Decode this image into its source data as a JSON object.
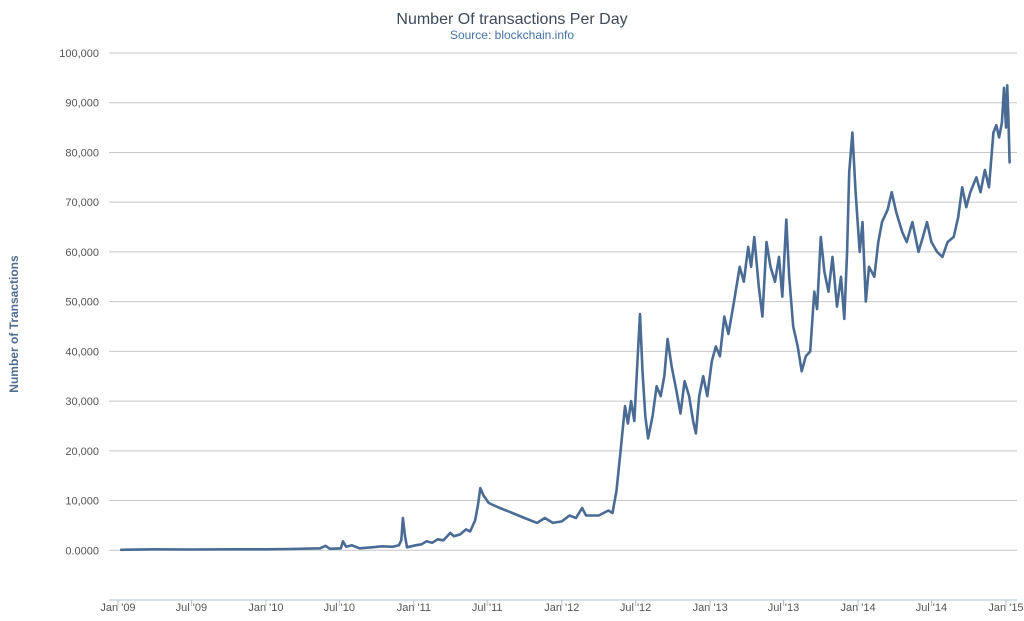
{
  "chart_data": {
    "type": "line",
    "title": "Number Of transactions Per Day",
    "subtitle": "Source: blockchain.info",
    "xlabel": "",
    "ylabel": "Number of Transactions",
    "ylim": [
      -10000,
      100000
    ],
    "xlim": [
      "2009-01-01",
      "2015-01-10"
    ],
    "y_ticks": [
      0,
      10000,
      20000,
      30000,
      40000,
      50000,
      60000,
      70000,
      80000,
      90000,
      100000
    ],
    "y_tick_labels": [
      "0.0000",
      "10,000",
      "20,000",
      "30,000",
      "40,000",
      "50,000",
      "60,000",
      "70,000",
      "80,000",
      "90,000",
      "100,000"
    ],
    "x_ticks": [
      "2009-01-01",
      "2009-07-01",
      "2010-01-01",
      "2010-07-01",
      "2011-01-01",
      "2011-07-01",
      "2012-01-01",
      "2012-07-01",
      "2013-01-01",
      "2013-07-01",
      "2014-01-01",
      "2014-07-01",
      "2015-01-01"
    ],
    "x_tick_labels": [
      "Jan '09",
      "Jul '09",
      "Jan '10",
      "Jul '10",
      "Jan '11",
      "Jul '11",
      "Jan '12",
      "Jul '12",
      "Jan '13",
      "Jul '13",
      "Jan '14",
      "Jul '14",
      "Jan '15"
    ],
    "grid": true,
    "legend": false,
    "series": [
      {
        "color": "#4a6b94",
        "points": [
          [
            "2009-01-09",
            100
          ],
          [
            "2009-04-01",
            200
          ],
          [
            "2009-07-01",
            150
          ],
          [
            "2009-10-01",
            200
          ],
          [
            "2010-01-01",
            200
          ],
          [
            "2010-03-01",
            250
          ],
          [
            "2010-05-15",
            400
          ],
          [
            "2010-05-28",
            900
          ],
          [
            "2010-06-08",
            300
          ],
          [
            "2010-07-05",
            400
          ],
          [
            "2010-07-10",
            1800
          ],
          [
            "2010-07-18",
            700
          ],
          [
            "2010-08-01",
            1000
          ],
          [
            "2010-08-20",
            400
          ],
          [
            "2010-09-20",
            600
          ],
          [
            "2010-10-15",
            800
          ],
          [
            "2010-11-10",
            700
          ],
          [
            "2010-11-25",
            1000
          ],
          [
            "2010-12-01",
            2000
          ],
          [
            "2010-12-05",
            6500
          ],
          [
            "2010-12-10",
            3000
          ],
          [
            "2010-12-15",
            600
          ],
          [
            "2011-01-05",
            1000
          ],
          [
            "2011-01-20",
            1200
          ],
          [
            "2011-02-01",
            1800
          ],
          [
            "2011-02-15",
            1500
          ],
          [
            "2011-03-01",
            2200
          ],
          [
            "2011-03-15",
            2000
          ],
          [
            "2011-04-01",
            3500
          ],
          [
            "2011-04-10",
            2800
          ],
          [
            "2011-04-25",
            3200
          ],
          [
            "2011-05-10",
            4200
          ],
          [
            "2011-05-20",
            3800
          ],
          [
            "2011-06-01",
            6000
          ],
          [
            "2011-06-08",
            9000
          ],
          [
            "2011-06-14",
            12500
          ],
          [
            "2011-06-22",
            11000
          ],
          [
            "2011-07-05",
            9500
          ],
          [
            "2011-08-01",
            8500
          ],
          [
            "2011-09-01",
            7500
          ],
          [
            "2011-10-01",
            6500
          ],
          [
            "2011-11-01",
            5500
          ],
          [
            "2011-11-20",
            6500
          ],
          [
            "2011-12-10",
            5500
          ],
          [
            "2012-01-01",
            5800
          ],
          [
            "2012-01-20",
            7000
          ],
          [
            "2012-02-05",
            6500
          ],
          [
            "2012-02-20",
            8500
          ],
          [
            "2012-03-01",
            7000
          ],
          [
            "2012-04-01",
            7000
          ],
          [
            "2012-04-25",
            8000
          ],
          [
            "2012-05-05",
            7500
          ],
          [
            "2012-05-15",
            12000
          ],
          [
            "2012-05-25",
            20000
          ],
          [
            "2012-06-05",
            29000
          ],
          [
            "2012-06-12",
            25500
          ],
          [
            "2012-06-20",
            30000
          ],
          [
            "2012-06-28",
            26000
          ],
          [
            "2012-07-05",
            37000
          ],
          [
            "2012-07-12",
            47500
          ],
          [
            "2012-07-18",
            36000
          ],
          [
            "2012-07-25",
            27000
          ],
          [
            "2012-08-01",
            22500
          ],
          [
            "2012-08-12",
            27000
          ],
          [
            "2012-08-22",
            33000
          ],
          [
            "2012-09-01",
            31000
          ],
          [
            "2012-09-10",
            35000
          ],
          [
            "2012-09-18",
            42500
          ],
          [
            "2012-09-28",
            37000
          ],
          [
            "2012-10-10",
            32000
          ],
          [
            "2012-10-20",
            27500
          ],
          [
            "2012-10-30",
            34000
          ],
          [
            "2012-11-10",
            31000
          ],
          [
            "2012-11-20",
            26000
          ],
          [
            "2012-11-27",
            23500
          ],
          [
            "2012-12-05",
            31000
          ],
          [
            "2012-12-15",
            35000
          ],
          [
            "2012-12-25",
            31000
          ],
          [
            "2013-01-05",
            38000
          ],
          [
            "2013-01-15",
            41000
          ],
          [
            "2013-01-25",
            39000
          ],
          [
            "2013-02-05",
            47000
          ],
          [
            "2013-02-15",
            43500
          ],
          [
            "2013-03-01",
            50000
          ],
          [
            "2013-03-15",
            57000
          ],
          [
            "2013-03-25",
            54000
          ],
          [
            "2013-04-05",
            61000
          ],
          [
            "2013-04-12",
            57000
          ],
          [
            "2013-04-20",
            63000
          ],
          [
            "2013-05-01",
            53000
          ],
          [
            "2013-05-10",
            47000
          ],
          [
            "2013-05-20",
            62000
          ],
          [
            "2013-05-30",
            57000
          ],
          [
            "2013-06-10",
            54000
          ],
          [
            "2013-06-20",
            59000
          ],
          [
            "2013-06-28",
            51000
          ],
          [
            "2013-07-08",
            66500
          ],
          [
            "2013-07-15",
            55000
          ],
          [
            "2013-07-25",
            45000
          ],
          [
            "2013-08-05",
            41000
          ],
          [
            "2013-08-15",
            36000
          ],
          [
            "2013-08-25",
            39000
          ],
          [
            "2013-09-05",
            40000
          ],
          [
            "2013-09-15",
            52000
          ],
          [
            "2013-09-22",
            48500
          ],
          [
            "2013-10-01",
            63000
          ],
          [
            "2013-10-10",
            56000
          ],
          [
            "2013-10-20",
            52000
          ],
          [
            "2013-10-30",
            59000
          ],
          [
            "2013-11-10",
            49000
          ],
          [
            "2013-11-20",
            55000
          ],
          [
            "2013-11-28",
            46500
          ],
          [
            "2013-12-05",
            60000
          ],
          [
            "2013-12-10",
            76000
          ],
          [
            "2013-12-18",
            84000
          ],
          [
            "2013-12-26",
            72000
          ],
          [
            "2014-01-05",
            60000
          ],
          [
            "2014-01-12",
            66000
          ],
          [
            "2014-01-20",
            50000
          ],
          [
            "2014-01-28",
            57000
          ],
          [
            "2014-02-10",
            55000
          ],
          [
            "2014-02-20",
            62000
          ],
          [
            "2014-03-01",
            66000
          ],
          [
            "2014-03-15",
            68500
          ],
          [
            "2014-03-25",
            72000
          ],
          [
            "2014-04-05",
            68000
          ],
          [
            "2014-04-20",
            64000
          ],
          [
            "2014-05-01",
            62000
          ],
          [
            "2014-05-15",
            66000
          ],
          [
            "2014-05-30",
            60000
          ],
          [
            "2014-06-10",
            63000
          ],
          [
            "2014-06-20",
            66000
          ],
          [
            "2014-07-01",
            62000
          ],
          [
            "2014-07-15",
            60000
          ],
          [
            "2014-07-28",
            59000
          ],
          [
            "2014-08-10",
            62000
          ],
          [
            "2014-08-25",
            63000
          ],
          [
            "2014-09-05",
            67000
          ],
          [
            "2014-09-15",
            73000
          ],
          [
            "2014-09-25",
            69000
          ],
          [
            "2014-10-05",
            72000
          ],
          [
            "2014-10-20",
            75000
          ],
          [
            "2014-10-30",
            72000
          ],
          [
            "2014-11-10",
            76500
          ],
          [
            "2014-11-20",
            73000
          ],
          [
            "2014-12-01",
            84000
          ],
          [
            "2014-12-08",
            85500
          ],
          [
            "2014-12-15",
            83000
          ],
          [
            "2014-12-22",
            86000
          ],
          [
            "2014-12-27",
            93000
          ],
          [
            "2015-01-01",
            85000
          ],
          [
            "2015-01-04",
            93500
          ],
          [
            "2015-01-07",
            87000
          ],
          [
            "2015-01-10",
            78000
          ]
        ]
      }
    ]
  }
}
